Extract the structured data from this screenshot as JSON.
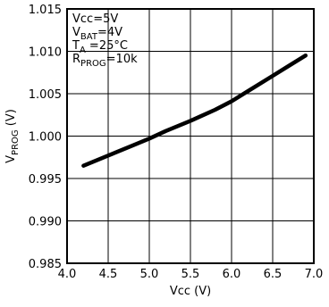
{
  "chart_data": {
    "type": "line",
    "title": "",
    "xlabel": "Vcc (V)",
    "ylabel": {
      "base": "V",
      "sub": "PROG",
      "rest": " (V)"
    },
    "xlim": [
      4.0,
      7.0
    ],
    "ylim": [
      0.985,
      1.015
    ],
    "xticks": [
      4.0,
      4.5,
      5.0,
      5.5,
      6.0,
      6.5,
      7.0
    ],
    "xtick_labels": [
      "4.0",
      "4.5",
      "5.0",
      "5.5",
      "6.0",
      "6.5",
      "7.0"
    ],
    "yticks": [
      0.985,
      0.99,
      0.995,
      1.0,
      1.005,
      1.01,
      1.015
    ],
    "ytick_labels": [
      "0.985",
      "0.990",
      "0.995",
      "1.000",
      "1.005",
      "1.010",
      "1.015"
    ],
    "grid": true,
    "annotations": [
      {
        "base": "Vcc=5V",
        "sub": "",
        "rest": ""
      },
      {
        "base": "V",
        "sub": "BAT",
        "rest": "=4V"
      },
      {
        "base": "T",
        "sub": "A",
        "rest": " =25°C"
      },
      {
        "base": "R",
        "sub": "PROG",
        "rest": "=10k"
      }
    ],
    "series": [
      {
        "color": "#000000",
        "x": [
          4.2,
          4.5,
          4.8,
          5.0,
          5.2,
          5.5,
          5.8,
          6.0,
          6.2,
          6.5,
          6.7,
          6.9
        ],
        "y": [
          0.9965,
          0.9977,
          0.9989,
          0.9997,
          1.0006,
          1.0018,
          1.0031,
          1.0041,
          1.0053,
          1.0071,
          1.0083,
          1.0095
        ]
      }
    ]
  }
}
